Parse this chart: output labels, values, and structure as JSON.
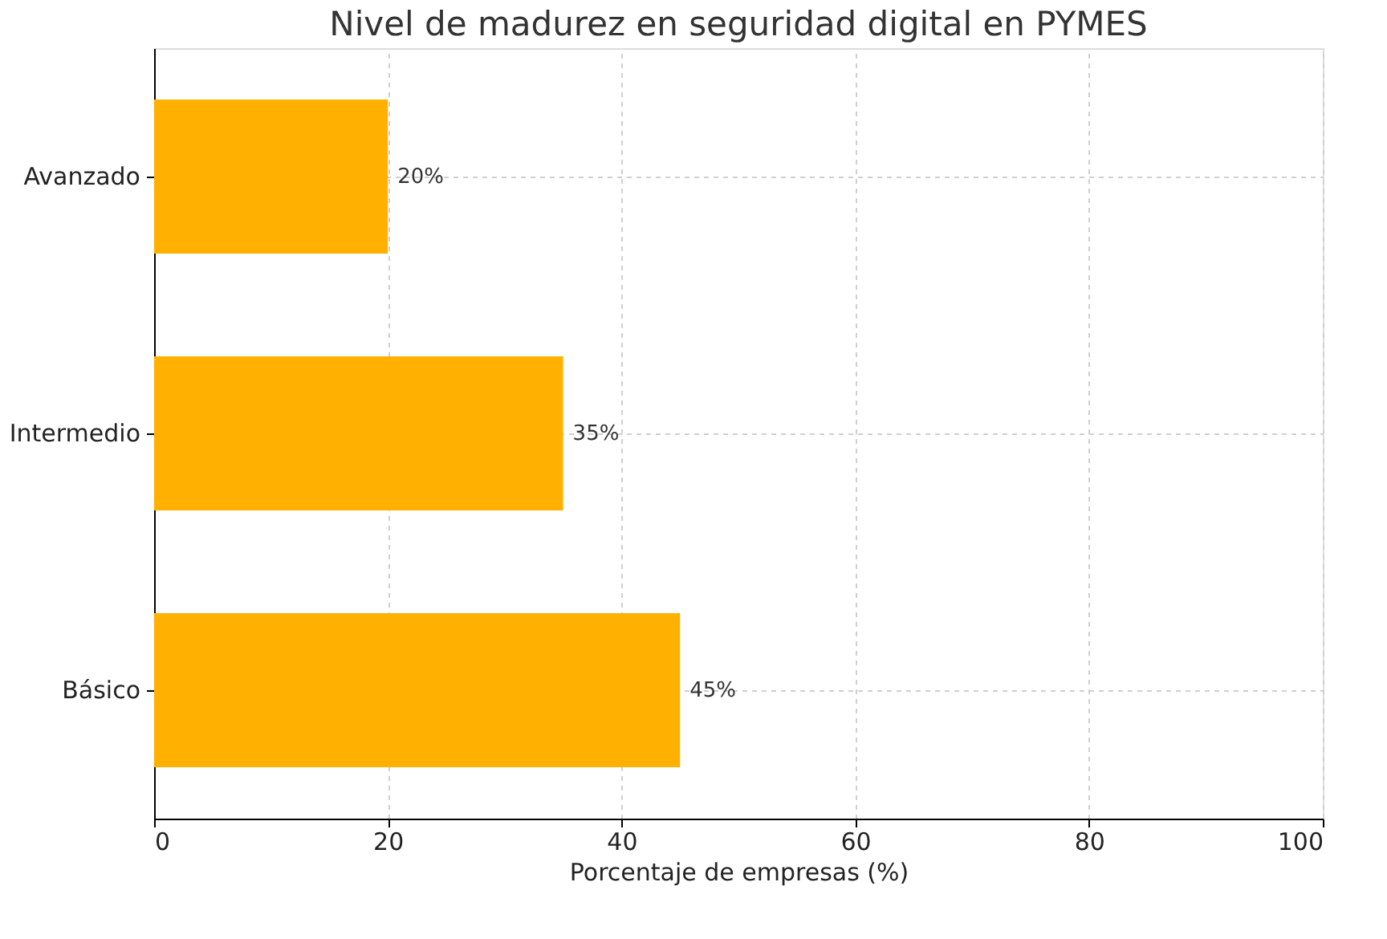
{
  "chart_data": {
    "type": "bar",
    "orientation": "horizontal",
    "title": "Nivel de madurez en seguridad digital en PYMES",
    "xlabel": "Porcentaje de empresas (%)",
    "categories": [
      "Avanzado",
      "Intermedio",
      "Básico"
    ],
    "values": [
      20,
      35,
      45
    ],
    "value_labels": [
      "20%",
      "35%",
      "45%"
    ],
    "color": "#ffb000",
    "xlim": [
      0,
      100
    ],
    "xticks": [
      0,
      20,
      40,
      60,
      80,
      100
    ],
    "grid": true
  }
}
